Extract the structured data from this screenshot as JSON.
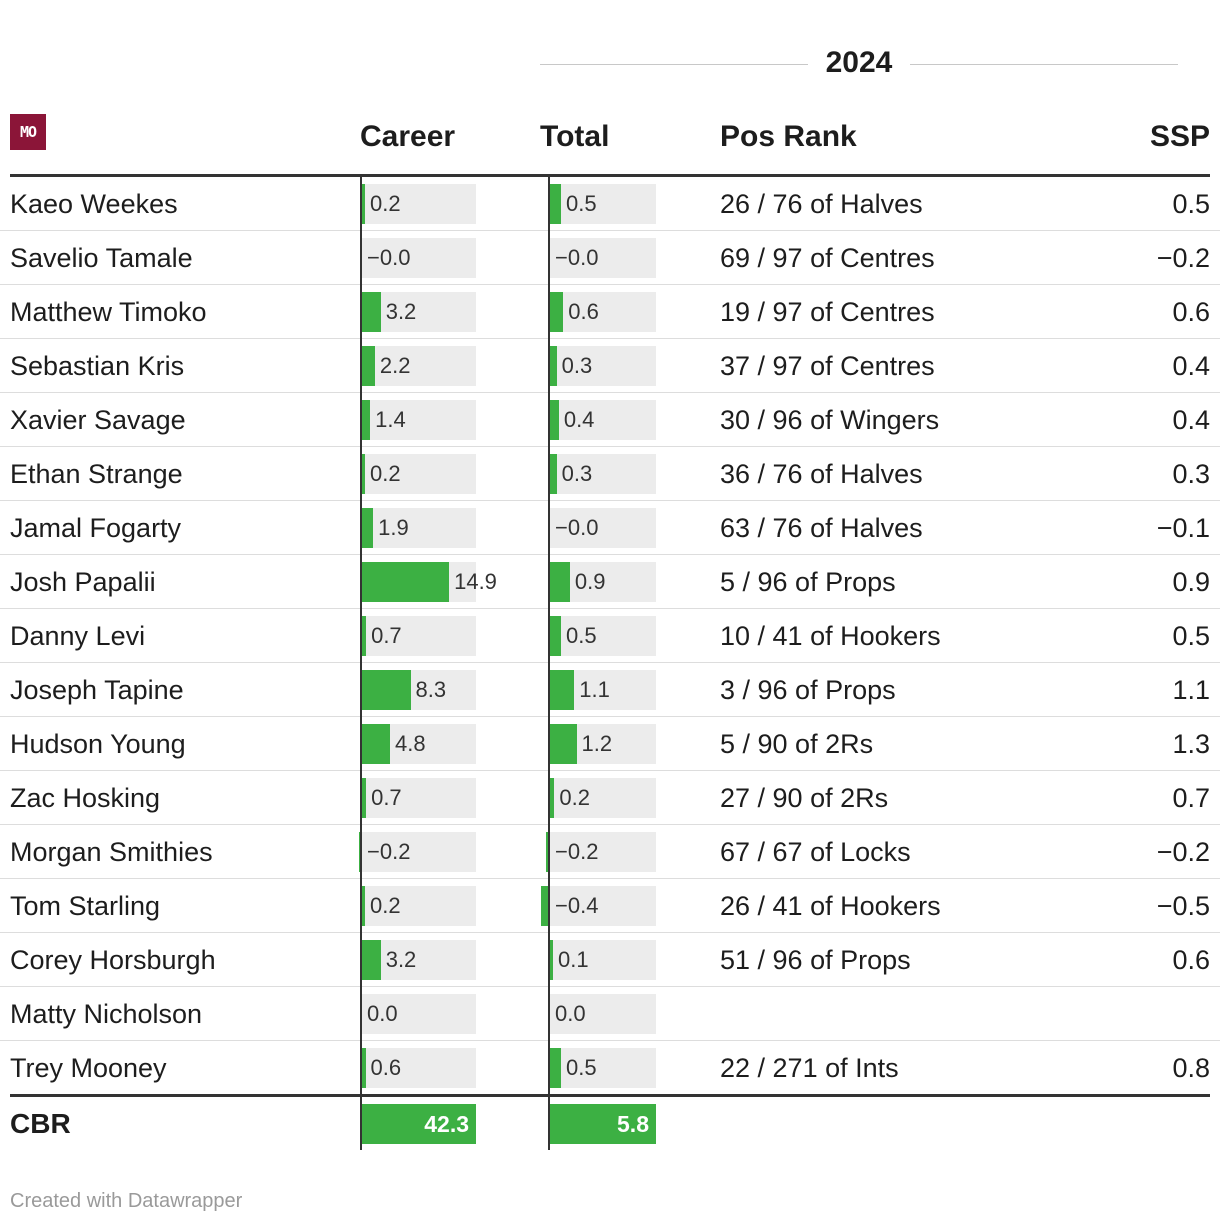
{
  "group_header": "2024",
  "logo_text": "MO",
  "columns": {
    "career": "Career",
    "total": "Total",
    "pos_rank": "Pos Rank",
    "ssp": "SSP"
  },
  "chart_data": {
    "type": "table",
    "career_domain": [
      -0.4,
      19
    ],
    "total_domain": [
      -0.45,
      4.8
    ],
    "rows": [
      {
        "name": "Kaeo Weekes",
        "career": "0.2",
        "total": "0.5",
        "pos_rank": "26 / 76 of Halves",
        "ssp": "0.5"
      },
      {
        "name": "Savelio Tamale",
        "career": "−0.0",
        "total": "−0.0",
        "pos_rank": "69 / 97 of Centres",
        "ssp": "−0.2"
      },
      {
        "name": "Matthew Timoko",
        "career": "3.2",
        "total": "0.6",
        "pos_rank": "19 / 97 of Centres",
        "ssp": "0.6"
      },
      {
        "name": "Sebastian Kris",
        "career": "2.2",
        "total": "0.3",
        "pos_rank": "37 / 97 of Centres",
        "ssp": "0.4"
      },
      {
        "name": "Xavier Savage",
        "career": "1.4",
        "total": "0.4",
        "pos_rank": "30 / 96 of Wingers",
        "ssp": "0.4"
      },
      {
        "name": "Ethan Strange",
        "career": "0.2",
        "total": "0.3",
        "pos_rank": "36 / 76 of Halves",
        "ssp": "0.3"
      },
      {
        "name": "Jamal Fogarty",
        "career": "1.9",
        "total": "−0.0",
        "pos_rank": "63 / 76 of Halves",
        "ssp": "−0.1"
      },
      {
        "name": "Josh Papalii",
        "career": "14.9",
        "total": "0.9",
        "pos_rank": "5 / 96 of Props",
        "ssp": "0.9"
      },
      {
        "name": "Danny Levi",
        "career": "0.7",
        "total": "0.5",
        "pos_rank": "10 / 41 of Hookers",
        "ssp": "0.5"
      },
      {
        "name": "Joseph Tapine",
        "career": "8.3",
        "total": "1.1",
        "pos_rank": "3 / 96 of Props",
        "ssp": "1.1"
      },
      {
        "name": "Hudson Young",
        "career": "4.8",
        "total": "1.2",
        "pos_rank": "5 / 90 of 2Rs",
        "ssp": "1.3"
      },
      {
        "name": "Zac Hosking",
        "career": "0.7",
        "total": "0.2",
        "pos_rank": "27 / 90 of 2Rs",
        "ssp": "0.7"
      },
      {
        "name": "Morgan Smithies",
        "career": "−0.2",
        "total": "−0.2",
        "pos_rank": "67 / 67 of Locks",
        "ssp": "−0.2"
      },
      {
        "name": "Tom Starling",
        "career": "0.2",
        "total": "−0.4",
        "pos_rank": "26 / 41 of Hookers",
        "ssp": "−0.5"
      },
      {
        "name": "Corey Horsburgh",
        "career": "3.2",
        "total": "0.1",
        "pos_rank": "51 / 96 of Props",
        "ssp": "0.6"
      },
      {
        "name": "Matty Nicholson",
        "career": "0.0",
        "total": "0.0",
        "pos_rank": "",
        "ssp": ""
      },
      {
        "name": "Trey Mooney",
        "career": "0.6",
        "total": "0.5",
        "pos_rank": "22 / 271 of Ints",
        "ssp": "0.8"
      }
    ],
    "totals": {
      "label": "CBR",
      "career": "42.3",
      "total": "5.8"
    }
  },
  "colors": {
    "bar": "#3cb043",
    "bar_background": "#ececec",
    "logo_background": "#8b1538"
  },
  "credit": "Created with Datawrapper"
}
